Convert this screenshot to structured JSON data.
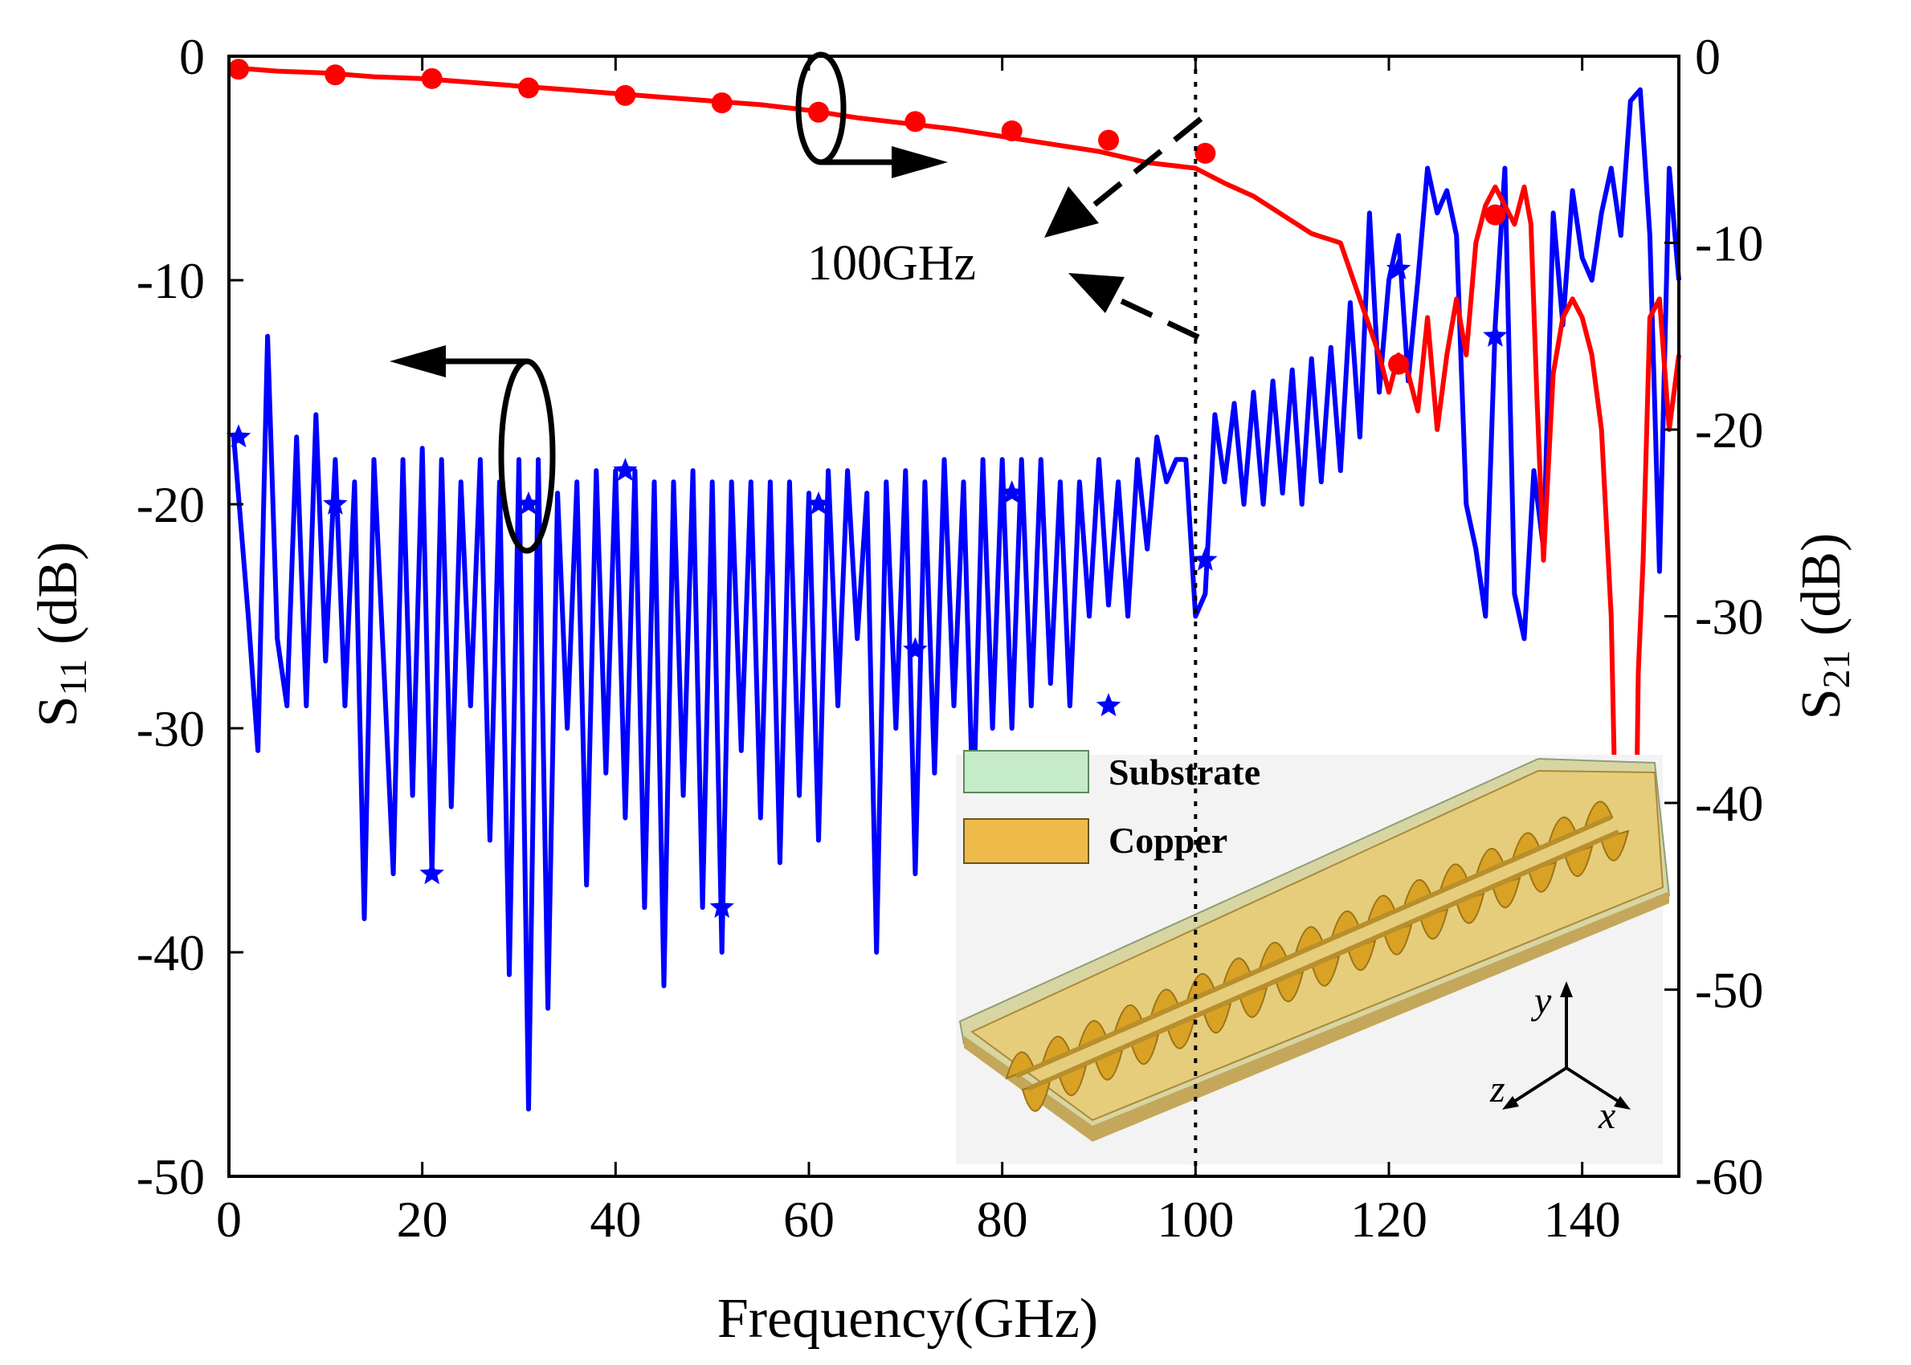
{
  "chart_data": {
    "type": "line",
    "xlabel": "Frequency(GHz)",
    "ylabel_left": {
      "main": "S",
      "sub": "11",
      "unit": " (dB)"
    },
    "ylabel_right": {
      "main": "S",
      "sub": "21",
      "unit": " (dB)"
    },
    "xlim": [
      0,
      150
    ],
    "ylim_left": [
      -50,
      0
    ],
    "ylim_right": [
      -60,
      0
    ],
    "x_ticks": [
      0,
      20,
      40,
      60,
      80,
      100,
      120,
      140
    ],
    "x_tick_labels": [
      "0",
      "20",
      "40",
      "60",
      "80",
      "100",
      "120",
      "140"
    ],
    "y_left_ticks": [
      0,
      -10,
      -20,
      -30,
      -40,
      -50
    ],
    "y_left_tick_labels": [
      "0",
      "-10",
      "-20",
      "-30",
      "-40",
      "-50"
    ],
    "y_right_ticks": [
      0,
      -10,
      -20,
      -30,
      -40,
      -50,
      -60
    ],
    "y_right_tick_labels": [
      "0",
      "-10",
      "-20",
      "-30",
      "-40",
      "-50",
      "-60"
    ],
    "grid": false,
    "series": [
      {
        "axis": "left",
        "color": "#0000ff",
        "marker": "star",
        "x": [
          0.5,
          2,
          3,
          4,
          5,
          6,
          7,
          8,
          9,
          10,
          11,
          12,
          13,
          14,
          15,
          16,
          17,
          18,
          19,
          20,
          21,
          22,
          23,
          24,
          25,
          26,
          27,
          28,
          29,
          30,
          31,
          32,
          33,
          34,
          35,
          36,
          37,
          38,
          39,
          40,
          41,
          42,
          43,
          44,
          45,
          46,
          47,
          48,
          49,
          50,
          51,
          52,
          53,
          54,
          55,
          56,
          57,
          58,
          59,
          60,
          61,
          62,
          63,
          64,
          65,
          66,
          67,
          68,
          69,
          70,
          71,
          72,
          73,
          74,
          75,
          76,
          77,
          78,
          79,
          80,
          81,
          82,
          83,
          84,
          85,
          86,
          87,
          88,
          89,
          90,
          91,
          92,
          93,
          94,
          95,
          96,
          97,
          98,
          99,
          100,
          101,
          102,
          103,
          104,
          105,
          106,
          107,
          108,
          109,
          110,
          111,
          112,
          113,
          114,
          115,
          116,
          117,
          118,
          119,
          120,
          121,
          122,
          123,
          124,
          125,
          126,
          127,
          128,
          129,
          130,
          131,
          132,
          133,
          134,
          135,
          136,
          137,
          138,
          139,
          140,
          141,
          142,
          143,
          144,
          145,
          146,
          147,
          148,
          149,
          150
        ],
        "values": [
          -17,
          -25,
          -31,
          -12.5,
          -26,
          -29,
          -17,
          -29,
          -16,
          -27,
          -18,
          -29,
          -19,
          -38.5,
          -18,
          -27,
          -36.5,
          -18,
          -33,
          -17.5,
          -36.5,
          -18,
          -33.5,
          -19,
          -29,
          -18,
          -35,
          -19,
          -41,
          -18,
          -47,
          -18,
          -42.5,
          -19.5,
          -30,
          -19,
          -37,
          -18.5,
          -32,
          -18.5,
          -34,
          -18.5,
          -38,
          -19,
          -41.5,
          -19,
          -33,
          -18.5,
          -38,
          -19,
          -40,
          -19,
          -31,
          -19,
          -34,
          -19,
          -36,
          -19,
          -33,
          -19.5,
          -35,
          -18.5,
          -29,
          -18.5,
          -26,
          -19.5,
          -40,
          -19,
          -30,
          -18.5,
          -36.5,
          -19,
          -32,
          -18,
          -29,
          -19,
          -34,
          -18,
          -30,
          -18,
          -30,
          -18,
          -29,
          -18,
          -28,
          -19,
          -29,
          -19,
          -25,
          -18,
          -24.5,
          -19,
          -25,
          -18,
          -22,
          -17,
          -19,
          -18,
          -18,
          -25,
          -24,
          -16,
          -19,
          -15.5,
          -20,
          -15,
          -20,
          -14.5,
          -19.5,
          -14,
          -20,
          -13.5,
          -19,
          -13,
          -18.5,
          -11,
          -17,
          -7,
          -15,
          -10,
          -8,
          -14.5,
          -10,
          -5,
          -7,
          -6,
          -8,
          -20,
          -22,
          -25,
          -12,
          -5,
          -24,
          -26,
          -18.5,
          -22,
          -7,
          -12,
          -6,
          -9,
          -10,
          -7,
          -5,
          -8,
          -2,
          -1.5,
          -8,
          -23,
          -5,
          -10
        ],
        "marker_x": [
          1,
          11,
          21,
          31,
          41,
          51,
          61,
          71,
          81,
          91,
          101,
          121,
          131
        ],
        "marker_y": [
          -17,
          -20,
          -36.5,
          -20,
          -18.5,
          -38,
          -20,
          -26.5,
          -19.5,
          -29,
          -22.5,
          -9.5,
          -12.5
        ]
      },
      {
        "axis": "right",
        "color": "#ff0000",
        "marker": "circle",
        "x": [
          0,
          5,
          10,
          15,
          20,
          25,
          30,
          35,
          40,
          45,
          50,
          55,
          60,
          65,
          70,
          75,
          80,
          85,
          90,
          95,
          100,
          103,
          106,
          109,
          112,
          115,
          117,
          119,
          120,
          121,
          122,
          123,
          124,
          125,
          126,
          127,
          128,
          129,
          130,
          131,
          132,
          133,
          134,
          134.7,
          135.3,
          136,
          137,
          138,
          139,
          140,
          141,
          142,
          143,
          143.6,
          144.2,
          144.8,
          145.3,
          145.8,
          146.3,
          147,
          148,
          149,
          150
        ],
        "values": [
          -0.6,
          -0.8,
          -0.9,
          -1.1,
          -1.2,
          -1.4,
          -1.6,
          -1.8,
          -2.0,
          -2.2,
          -2.4,
          -2.6,
          -2.9,
          -3.3,
          -3.6,
          -3.9,
          -4.3,
          -4.7,
          -5.1,
          -5.7,
          -6.0,
          -6.8,
          -7.5,
          -8.5,
          -9.5,
          -10,
          -13,
          -16,
          -18,
          -16,
          -17,
          -19,
          -14,
          -20,
          -16,
          -13,
          -16,
          -10,
          -8,
          -7,
          -8,
          -9,
          -7,
          -9,
          -18,
          -27,
          -17,
          -14,
          -13,
          -14,
          -16,
          -20,
          -30,
          -45,
          -55,
          -58,
          -53,
          -33,
          -27,
          -14,
          -13,
          -20,
          -16
        ],
        "marker_x": [
          1,
          11,
          21,
          31,
          41,
          51,
          61,
          71,
          81,
          91,
          101,
          121,
          131
        ],
        "marker_y": [
          -0.7,
          -1.0,
          -1.2,
          -1.7,
          -2.1,
          -2.5,
          -3.0,
          -3.5,
          -4.0,
          -4.5,
          -5.2,
          -16.5,
          -8.5
        ]
      }
    ],
    "marker_line_x": 100,
    "annotation": "100GHz",
    "inset_legend": [
      {
        "label": "Substrate",
        "color": "#c6ebc9"
      },
      {
        "label": "Copper",
        "color": "#efbb4a"
      }
    ],
    "inset_axes_labels": [
      "y",
      "z",
      "x"
    ]
  }
}
